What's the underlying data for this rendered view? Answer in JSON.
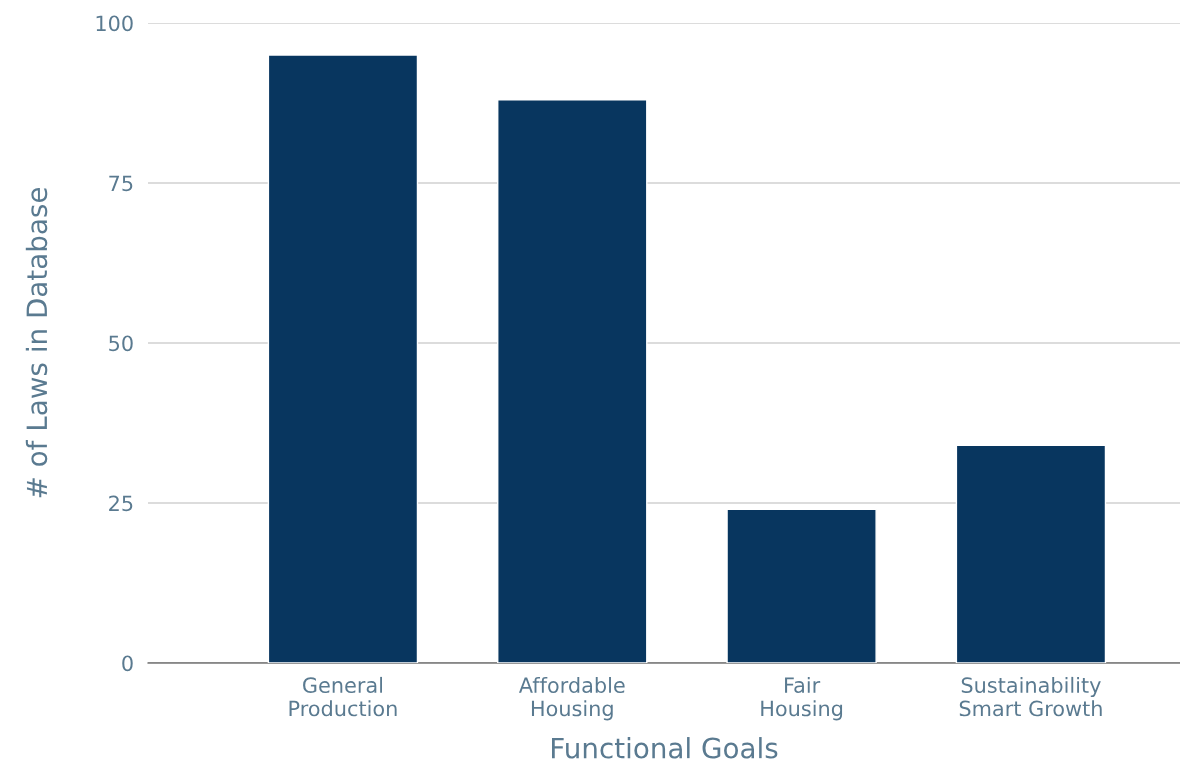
{
  "chart_data": {
    "type": "bar",
    "xlabel": "Functional Goals",
    "ylabel": "# of Laws in Database",
    "categories": [
      "General\nProduction",
      "Affordable\nHousing",
      "Fair\nHousing",
      "Sustainability\nSmart Growth"
    ],
    "values": [
      95,
      88,
      24,
      34
    ],
    "color": "#08365f",
    "ylim": [
      0,
      100
    ],
    "yticks": [
      0,
      25,
      50,
      75,
      100
    ],
    "grid": "y"
  }
}
